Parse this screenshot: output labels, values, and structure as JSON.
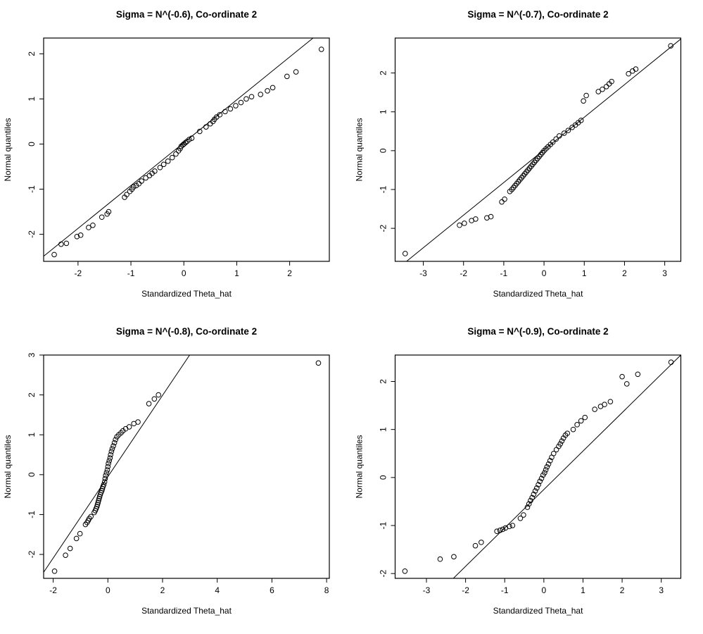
{
  "page": {
    "background": "#ffffff",
    "foreground": "#000000"
  },
  "figure": {
    "rows": 2,
    "cols": 2,
    "marker": "open-circle"
  },
  "chart_data": [
    {
      "type": "scatter",
      "title": "Sigma = N^(-0.6), Co-ordinate 2",
      "xlabel": "Standardized Theta_hat",
      "ylabel": "Normal quantiles",
      "xlim": [
        -2.65,
        2.75
      ],
      "ylim": [
        -2.6,
        2.35
      ],
      "xticks": [
        -2,
        -1,
        0,
        1,
        2
      ],
      "yticks": [
        -2,
        -1,
        0,
        1,
        2
      ],
      "grid": false,
      "legend": "none",
      "ref_line": {
        "slope": 0.95,
        "intercept": 0.03
      },
      "points": [
        [
          -2.45,
          -2.45
        ],
        [
          -2.32,
          -2.22
        ],
        [
          -2.22,
          -2.2
        ],
        [
          -2.02,
          -2.05
        ],
        [
          -1.95,
          -2.02
        ],
        [
          -1.8,
          -1.85
        ],
        [
          -1.72,
          -1.8
        ],
        [
          -1.55,
          -1.62
        ],
        [
          -1.45,
          -1.55
        ],
        [
          -1.42,
          -1.5
        ],
        [
          -1.12,
          -1.18
        ],
        [
          -1.08,
          -1.12
        ],
        [
          -1.02,
          -1.05
        ],
        [
          -0.98,
          -1.0
        ],
        [
          -0.95,
          -0.95
        ],
        [
          -0.9,
          -0.92
        ],
        [
          -0.85,
          -0.88
        ],
        [
          -0.8,
          -0.82
        ],
        [
          -0.72,
          -0.75
        ],
        [
          -0.65,
          -0.7
        ],
        [
          -0.6,
          -0.65
        ],
        [
          -0.55,
          -0.6
        ],
        [
          -0.45,
          -0.52
        ],
        [
          -0.38,
          -0.45
        ],
        [
          -0.3,
          -0.38
        ],
        [
          -0.22,
          -0.3
        ],
        [
          -0.15,
          -0.22
        ],
        [
          -0.1,
          -0.15
        ],
        [
          -0.07,
          -0.1
        ],
        [
          -0.05,
          -0.05
        ],
        [
          -0.02,
          -0.02
        ],
        [
          0.0,
          0.0
        ],
        [
          0.03,
          0.03
        ],
        [
          0.06,
          0.06
        ],
        [
          0.1,
          0.1
        ],
        [
          0.15,
          0.13
        ],
        [
          0.3,
          0.28
        ],
        [
          0.42,
          0.38
        ],
        [
          0.5,
          0.45
        ],
        [
          0.55,
          0.5
        ],
        [
          0.58,
          0.55
        ],
        [
          0.62,
          0.6
        ],
        [
          0.68,
          0.65
        ],
        [
          0.78,
          0.72
        ],
        [
          0.88,
          0.78
        ],
        [
          0.98,
          0.85
        ],
        [
          1.08,
          0.92
        ],
        [
          1.18,
          1.0
        ],
        [
          1.28,
          1.05
        ],
        [
          1.45,
          1.1
        ],
        [
          1.58,
          1.18
        ],
        [
          1.68,
          1.25
        ],
        [
          1.95,
          1.5
        ],
        [
          2.12,
          1.6
        ],
        [
          2.6,
          2.1
        ]
      ]
    },
    {
      "type": "scatter",
      "title": "Sigma = N^(-0.7), Co-ordinate 2",
      "xlabel": "Standardized Theta_hat",
      "ylabel": "Normal quantiles",
      "xlim": [
        -3.7,
        3.4
      ],
      "ylim": [
        -2.85,
        2.9
      ],
      "xticks": [
        -3,
        -2,
        -1,
        0,
        1,
        2,
        3
      ],
      "yticks": [
        -2,
        -1,
        0,
        1,
        2
      ],
      "grid": false,
      "legend": "none",
      "ref_line": {
        "slope": 0.84,
        "intercept": 0.02
      },
      "points": [
        [
          -3.45,
          -2.65
        ],
        [
          -2.1,
          -1.92
        ],
        [
          -1.98,
          -1.87
        ],
        [
          -1.8,
          -1.8
        ],
        [
          -1.7,
          -1.76
        ],
        [
          -1.42,
          -1.73
        ],
        [
          -1.32,
          -1.7
        ],
        [
          -1.05,
          -1.32
        ],
        [
          -0.98,
          -1.25
        ],
        [
          -0.85,
          -1.05
        ],
        [
          -0.8,
          -1.0
        ],
        [
          -0.76,
          -0.95
        ],
        [
          -0.72,
          -0.9
        ],
        [
          -0.68,
          -0.85
        ],
        [
          -0.64,
          -0.8
        ],
        [
          -0.6,
          -0.75
        ],
        [
          -0.56,
          -0.7
        ],
        [
          -0.52,
          -0.65
        ],
        [
          -0.48,
          -0.6
        ],
        [
          -0.44,
          -0.55
        ],
        [
          -0.4,
          -0.5
        ],
        [
          -0.36,
          -0.45
        ],
        [
          -0.32,
          -0.4
        ],
        [
          -0.28,
          -0.35
        ],
        [
          -0.24,
          -0.3
        ],
        [
          -0.2,
          -0.25
        ],
        [
          -0.16,
          -0.2
        ],
        [
          -0.12,
          -0.15
        ],
        [
          -0.08,
          -0.1
        ],
        [
          -0.04,
          -0.05
        ],
        [
          0.0,
          0.0
        ],
        [
          0.05,
          0.05
        ],
        [
          0.1,
          0.1
        ],
        [
          0.16,
          0.16
        ],
        [
          0.22,
          0.22
        ],
        [
          0.3,
          0.3
        ],
        [
          0.38,
          0.38
        ],
        [
          0.5,
          0.45
        ],
        [
          0.6,
          0.52
        ],
        [
          0.7,
          0.6
        ],
        [
          0.78,
          0.66
        ],
        [
          0.85,
          0.72
        ],
        [
          0.92,
          0.78
        ],
        [
          0.98,
          1.28
        ],
        [
          1.05,
          1.42
        ],
        [
          1.35,
          1.52
        ],
        [
          1.45,
          1.58
        ],
        [
          1.55,
          1.65
        ],
        [
          1.62,
          1.72
        ],
        [
          1.68,
          1.78
        ],
        [
          2.1,
          1.98
        ],
        [
          2.2,
          2.05
        ],
        [
          2.28,
          2.1
        ],
        [
          3.15,
          2.7
        ]
      ]
    },
    {
      "type": "scatter",
      "title": "Sigma = N^(-0.8), Co-ordinate 2",
      "xlabel": "Standardized Theta_hat",
      "ylabel": "Normal quantiles",
      "xlim": [
        -2.35,
        8.1
      ],
      "ylim": [
        -2.6,
        3.0
      ],
      "xticks": [
        -2,
        0,
        2,
        4,
        6,
        8
      ],
      "yticks": [
        -2,
        -1,
        0,
        1,
        2,
        3
      ],
      "grid": false,
      "legend": "none",
      "ref_line": {
        "slope": 1.02,
        "intercept": -0.05
      },
      "points": [
        [
          -1.95,
          -2.42
        ],
        [
          -1.55,
          -2.02
        ],
        [
          -1.38,
          -1.85
        ],
        [
          -1.15,
          -1.6
        ],
        [
          -1.02,
          -1.48
        ],
        [
          -0.82,
          -1.25
        ],
        [
          -0.76,
          -1.2
        ],
        [
          -0.72,
          -1.15
        ],
        [
          -0.68,
          -1.1
        ],
        [
          -0.62,
          -1.05
        ],
        [
          -0.5,
          -0.95
        ],
        [
          -0.46,
          -0.9
        ],
        [
          -0.43,
          -0.85
        ],
        [
          -0.4,
          -0.8
        ],
        [
          -0.38,
          -0.75
        ],
        [
          -0.36,
          -0.7
        ],
        [
          -0.34,
          -0.65
        ],
        [
          -0.32,
          -0.6
        ],
        [
          -0.3,
          -0.55
        ],
        [
          -0.28,
          -0.5
        ],
        [
          -0.25,
          -0.45
        ],
        [
          -0.22,
          -0.4
        ],
        [
          -0.2,
          -0.35
        ],
        [
          -0.18,
          -0.3
        ],
        [
          -0.15,
          -0.25
        ],
        [
          -0.12,
          -0.18
        ],
        [
          -0.1,
          -0.1
        ],
        [
          -0.08,
          -0.02
        ],
        [
          -0.05,
          0.05
        ],
        [
          -0.02,
          0.12
        ],
        [
          0.0,
          0.2
        ],
        [
          0.02,
          0.28
        ],
        [
          0.05,
          0.35
        ],
        [
          0.08,
          0.42
        ],
        [
          0.1,
          0.5
        ],
        [
          0.13,
          0.58
        ],
        [
          0.16,
          0.65
        ],
        [
          0.2,
          0.72
        ],
        [
          0.24,
          0.8
        ],
        [
          0.28,
          0.88
        ],
        [
          0.33,
          0.95
        ],
        [
          0.4,
          1.0
        ],
        [
          0.48,
          1.05
        ],
        [
          0.55,
          1.1
        ],
        [
          0.65,
          1.15
        ],
        [
          0.78,
          1.2
        ],
        [
          0.95,
          1.28
        ],
        [
          1.1,
          1.32
        ],
        [
          1.5,
          1.78
        ],
        [
          1.7,
          1.9
        ],
        [
          1.85,
          2.0
        ],
        [
          7.7,
          2.8
        ]
      ]
    },
    {
      "type": "scatter",
      "title": "Sigma = N^(-0.9), Co-ordinate 2",
      "xlabel": "Standardized Theta_hat",
      "ylabel": "Normal quantiles",
      "xlim": [
        -3.8,
        3.5
      ],
      "ylim": [
        -2.1,
        2.55
      ],
      "xticks": [
        -3,
        -2,
        -1,
        0,
        1,
        2,
        3
      ],
      "yticks": [
        -2,
        -1,
        0,
        1,
        2
      ],
      "grid": false,
      "legend": "none",
      "ref_line": {
        "slope": 0.8,
        "intercept": -0.25
      },
      "points": [
        [
          -3.55,
          -1.95
        ],
        [
          -2.65,
          -1.7
        ],
        [
          -2.3,
          -1.65
        ],
        [
          -1.75,
          -1.42
        ],
        [
          -1.6,
          -1.35
        ],
        [
          -1.2,
          -1.12
        ],
        [
          -1.12,
          -1.1
        ],
        [
          -1.05,
          -1.08
        ],
        [
          -0.98,
          -1.05
        ],
        [
          -0.88,
          -1.02
        ],
        [
          -0.8,
          -1.0
        ],
        [
          -0.6,
          -0.85
        ],
        [
          -0.52,
          -0.78
        ],
        [
          -0.42,
          -0.62
        ],
        [
          -0.38,
          -0.55
        ],
        [
          -0.34,
          -0.48
        ],
        [
          -0.3,
          -0.42
        ],
        [
          -0.26,
          -0.35
        ],
        [
          -0.22,
          -0.28
        ],
        [
          -0.18,
          -0.22
        ],
        [
          -0.14,
          -0.15
        ],
        [
          -0.1,
          -0.08
        ],
        [
          -0.06,
          -0.02
        ],
        [
          -0.02,
          0.05
        ],
        [
          0.02,
          0.1
        ],
        [
          0.05,
          0.16
        ],
        [
          0.08,
          0.22
        ],
        [
          0.12,
          0.28
        ],
        [
          0.16,
          0.35
        ],
        [
          0.2,
          0.42
        ],
        [
          0.25,
          0.5
        ],
        [
          0.32,
          0.58
        ],
        [
          0.38,
          0.65
        ],
        [
          0.42,
          0.7
        ],
        [
          0.46,
          0.76
        ],
        [
          0.5,
          0.82
        ],
        [
          0.55,
          0.88
        ],
        [
          0.6,
          0.92
        ],
        [
          0.75,
          1.0
        ],
        [
          0.85,
          1.1
        ],
        [
          0.95,
          1.18
        ],
        [
          1.05,
          1.25
        ],
        [
          1.3,
          1.42
        ],
        [
          1.45,
          1.48
        ],
        [
          1.55,
          1.52
        ],
        [
          1.7,
          1.58
        ],
        [
          2.0,
          2.1
        ],
        [
          2.12,
          1.95
        ],
        [
          2.4,
          2.15
        ],
        [
          3.25,
          2.4
        ]
      ]
    }
  ]
}
